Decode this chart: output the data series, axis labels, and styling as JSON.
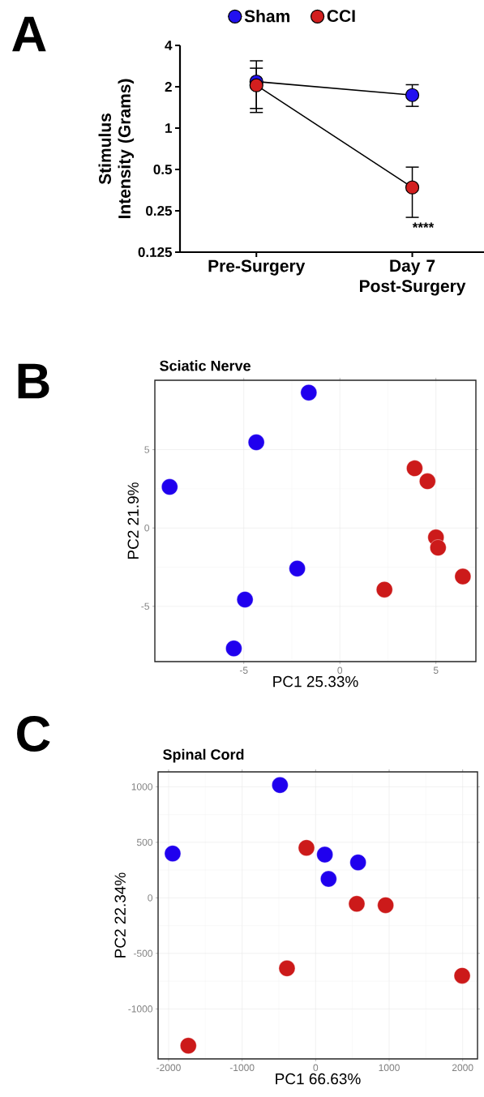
{
  "chart_data": [
    {
      "type": "line",
      "categories": [
        "Pre-Surgery",
        "Day 7 Post-Surgery"
      ],
      "ylabel": "Stimulus Intensity (Grams)",
      "log": true,
      "ylim": [
        0.125,
        4
      ],
      "yticks": [
        0.125,
        0.25,
        0.5,
        1,
        2,
        4
      ],
      "marker": "circle",
      "legend": "top",
      "series": [
        {
          "name": "Sham",
          "color": "#2211f0",
          "values": [
            2.18,
            1.74
          ],
          "errors": [
            [
              1.3,
              3.09
            ],
            [
              1.44,
              2.07
            ]
          ]
        },
        {
          "name": "CCI",
          "color": "#d21f1f",
          "values": [
            2.05,
            0.37
          ],
          "errors": [
            [
              1.39,
              2.73
            ],
            [
              0.224,
              0.52
            ]
          ]
        }
      ],
      "annotations": [
        "A",
        "****"
      ]
    },
    {
      "type": "scatter",
      "title": "Sciatic Nerve",
      "xlabel": "PC1   25.33%",
      "ylabel": "PC2   21.9%",
      "xlim": [
        -9.63,
        7.08
      ],
      "ylim": [
        -8.53,
        9.43
      ],
      "xticks": [
        -5,
        0,
        5
      ],
      "yticks": [
        -5,
        0,
        5
      ],
      "grid": true,
      "marker": "circle",
      "series": [
        {
          "color": "#2000ee",
          "x": [
            -1.62,
            -4.35,
            -8.86,
            -2.22,
            -4.94,
            -5.52
          ],
          "values": [
            8.64,
            5.47,
            2.62,
            -2.59,
            -4.57,
            -7.69
          ]
        },
        {
          "color": "#cc1a1a",
          "x": [
            3.89,
            4.56,
            5.0,
            5.11,
            6.4,
            2.32
          ],
          "values": [
            3.81,
            2.98,
            -0.6,
            -1.26,
            -3.1,
            -3.93
          ]
        }
      ],
      "annotations": [
        "B"
      ]
    },
    {
      "type": "scatter",
      "title": "Spinal Cord",
      "xlabel": "PC1   66.63%",
      "ylabel": "PC2   22.34%",
      "xlim": [
        -2143,
        2202
      ],
      "ylim": [
        -1450,
        1134
      ],
      "xticks": [
        -2000,
        -1000,
        0,
        1000,
        2000
      ],
      "yticks": [
        -1000,
        -500,
        0,
        500,
        1000
      ],
      "grid": true,
      "marker": "circle",
      "series": [
        {
          "color": "#2000ee",
          "x": [
            -485,
            -1945,
            125,
            176,
            577
          ],
          "values": [
            1015,
            399,
            389,
            170,
            319
          ]
        },
        {
          "color": "#cc1a1a",
          "x": [
            -125,
            559,
            952,
            -390,
            1993,
            -1732
          ],
          "values": [
            450,
            -54,
            -66,
            -635,
            -701,
            -1331
          ]
        }
      ],
      "annotations": [
        "C"
      ]
    }
  ]
}
